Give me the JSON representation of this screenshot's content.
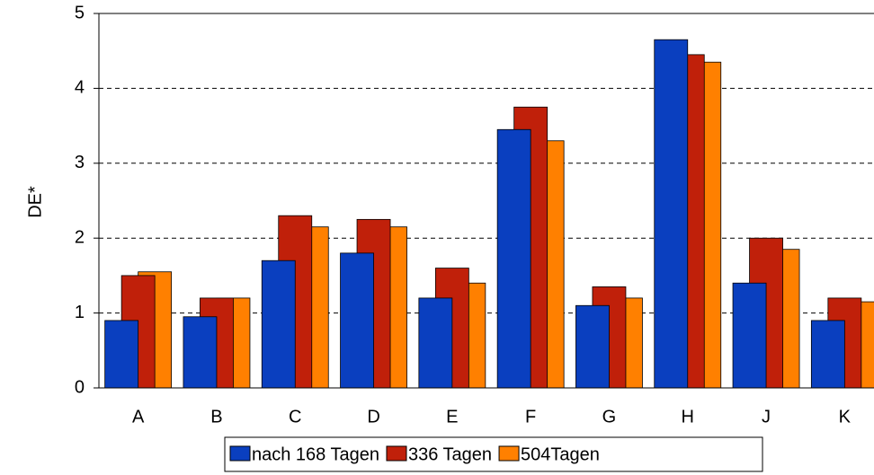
{
  "chart_data": {
    "type": "bar",
    "y_label": "DE*",
    "categories": [
      "A",
      "B",
      "C",
      "D",
      "E",
      "F",
      "G",
      "H",
      "J",
      "K"
    ],
    "series": [
      {
        "name": "nach 168 Tagen",
        "color": "#0a3fbf",
        "values": [
          0.9,
          0.95,
          1.7,
          1.8,
          1.2,
          3.45,
          1.1,
          4.65,
          1.4,
          0.9
        ]
      },
      {
        "name": "336 Tagen",
        "color": "#c0200a",
        "values": [
          1.5,
          1.2,
          2.3,
          2.25,
          1.6,
          3.75,
          1.35,
          4.45,
          2.0,
          1.2
        ]
      },
      {
        "name": "504Tagen",
        "color": "#ff8000",
        "values": [
          1.55,
          1.2,
          2.15,
          2.15,
          1.4,
          3.3,
          1.2,
          4.35,
          1.85,
          1.15
        ]
      }
    ],
    "ylim": [
      0,
      5
    ],
    "yticks": [
      0,
      1,
      2,
      3,
      4,
      5
    ],
    "grid": true,
    "legend": "bottom"
  }
}
